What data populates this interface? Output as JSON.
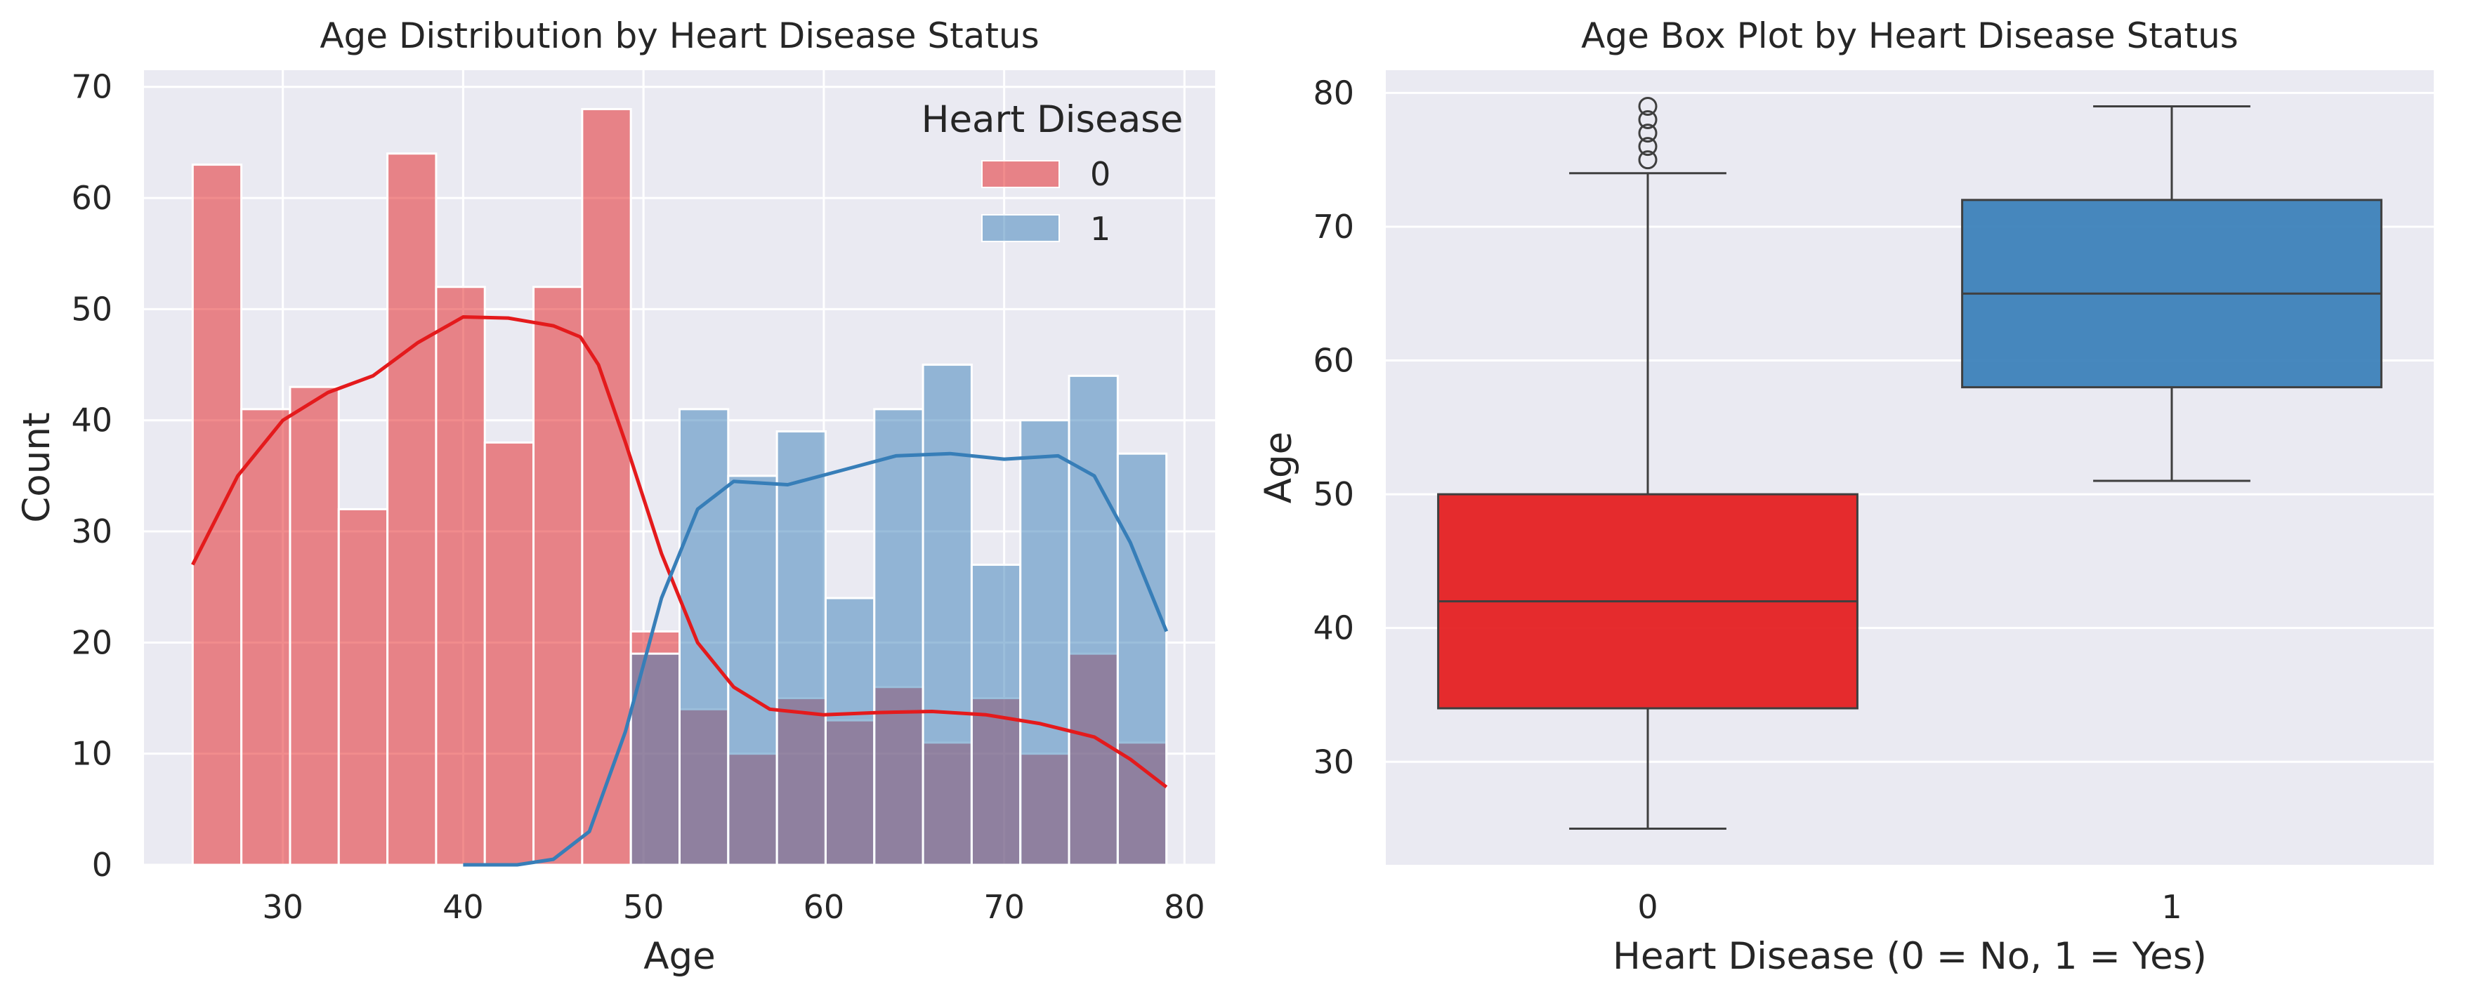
{
  "colors": {
    "background": "#EAEAF2",
    "grid": "#FFFFFF",
    "class0": "#E41A1C",
    "class1": "#377EB8",
    "box_line": "#3F3F3F"
  },
  "chart_data": [
    {
      "type": "bar",
      "subtype": "histogram-with-kde",
      "title": "Age Distribution by Heart Disease Status",
      "xlabel": "Age",
      "ylabel": "Count",
      "xlim": [
        22.3,
        81.7
      ],
      "ylim": [
        0,
        71.5
      ],
      "xticks": [
        30,
        40,
        50,
        60,
        70,
        80
      ],
      "yticks": [
        0,
        10,
        20,
        30,
        40,
        50,
        60,
        70
      ],
      "grid": true,
      "legend": {
        "title": "Heart Disease",
        "position": "top-right",
        "entries": [
          "0",
          "1"
        ]
      },
      "bin_edges": [
        25,
        27.7,
        30.4,
        33.1,
        35.8,
        38.5,
        41.2,
        43.9,
        46.6,
        49.3,
        52,
        54.7,
        57.4,
        60.1,
        62.8,
        65.5,
        68.2,
        70.9,
        73.6,
        76.3,
        79
      ],
      "series": [
        {
          "name": "0",
          "values": [
            63,
            41,
            43,
            32,
            64,
            52,
            38,
            52,
            68,
            21,
            14,
            10,
            15,
            13,
            16,
            11,
            15,
            10,
            19,
            11
          ],
          "kde": [
            [
              25,
              27
            ],
            [
              27.5,
              35
            ],
            [
              30,
              40
            ],
            [
              32.5,
              42.5
            ],
            [
              35,
              44
            ],
            [
              37.5,
              47
            ],
            [
              40,
              49.3
            ],
            [
              42.5,
              49.2
            ],
            [
              45,
              48.5
            ],
            [
              46.5,
              47.5
            ],
            [
              47.5,
              45
            ],
            [
              49,
              38
            ],
            [
              51,
              28
            ],
            [
              53,
              20
            ],
            [
              55,
              16
            ],
            [
              57,
              14
            ],
            [
              60,
              13.5
            ],
            [
              63,
              13.7
            ],
            [
              66,
              13.8
            ],
            [
              69,
              13.5
            ],
            [
              72,
              12.7
            ],
            [
              75,
              11.5
            ],
            [
              77,
              9.5
            ],
            [
              79,
              7
            ]
          ]
        },
        {
          "name": "1",
          "values": [
            0,
            0,
            0,
            0,
            0,
            0,
            0,
            0,
            0,
            19,
            41,
            35,
            39,
            24,
            41,
            45,
            27,
            40,
            44,
            37
          ],
          "kde": [
            [
              40,
              0
            ],
            [
              43,
              0
            ],
            [
              45,
              0.5
            ],
            [
              47,
              3
            ],
            [
              49,
              12
            ],
            [
              51,
              24
            ],
            [
              53,
              32
            ],
            [
              55,
              34.5
            ],
            [
              58,
              34.2
            ],
            [
              61,
              35.5
            ],
            [
              64,
              36.8
            ],
            [
              67,
              37
            ],
            [
              70,
              36.5
            ],
            [
              73,
              36.8
            ],
            [
              75,
              35
            ],
            [
              77,
              29
            ],
            [
              79,
              21
            ]
          ]
        }
      ]
    },
    {
      "type": "box",
      "title": "Age Box Plot by Heart Disease Status",
      "xlabel": "Heart Disease (0 = No, 1 = Yes)",
      "ylabel": "Age",
      "categories": [
        "0",
        "1"
      ],
      "ylim": [
        22.3,
        81.7
      ],
      "yticks": [
        30,
        40,
        50,
        60,
        70,
        80
      ],
      "grid": true,
      "boxes": [
        {
          "name": "0",
          "whislo": 25,
          "q1": 34,
          "med": 42,
          "q3": 50,
          "whishi": 74,
          "fliers": [
            75,
            76,
            77,
            78,
            79
          ]
        },
        {
          "name": "1",
          "whislo": 51,
          "q1": 58,
          "med": 65,
          "q3": 72,
          "whishi": 79,
          "fliers": []
        }
      ]
    }
  ]
}
